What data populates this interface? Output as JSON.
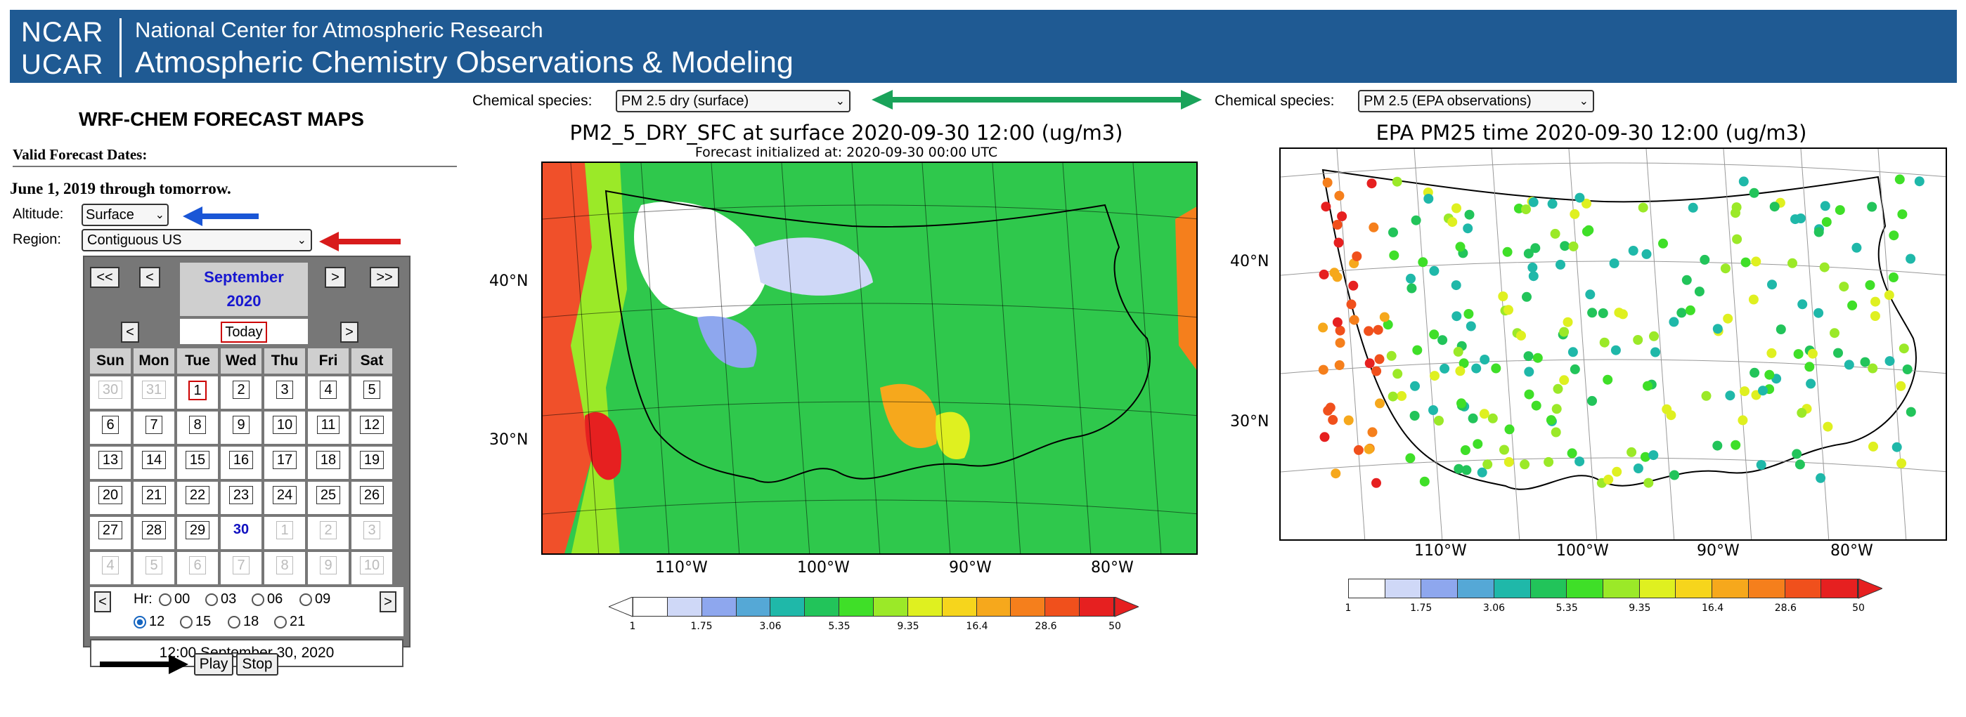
{
  "header": {
    "logo_top": "NCAR",
    "logo_bottom": "UCAR",
    "org": "National Center for Atmospheric Research",
    "title": "Atmospheric Chemistry Observations & Modeling",
    "bg_color": "#1f5a93"
  },
  "left": {
    "title": "WRF-CHEM FORECAST MAPS",
    "valid_label": "Valid Forecast Dates:",
    "valid_range": "June 1, 2019 through tomorrow.",
    "altitude_label": "Altitude:",
    "altitude_value": "Surface",
    "region_label": "Region:",
    "region_value": "Contiguous US"
  },
  "calendar": {
    "nav": [
      "<<",
      "<",
      ">",
      ">>"
    ],
    "month": "September",
    "year": "2020",
    "sub_prev": "<",
    "sub_next": ">",
    "today": "Today",
    "weekdays": [
      "Sun",
      "Mon",
      "Tue",
      "Wed",
      "Thu",
      "Fri",
      "Sat"
    ],
    "weeks": [
      [
        "30",
        "31",
        "1",
        "2",
        "3",
        "4",
        "5"
      ],
      [
        "6",
        "7",
        "8",
        "9",
        "10",
        "11",
        "12"
      ],
      [
        "13",
        "14",
        "15",
        "16",
        "17",
        "18",
        "19"
      ],
      [
        "20",
        "21",
        "22",
        "23",
        "24",
        "25",
        "26"
      ],
      [
        "27",
        "28",
        "29",
        "30",
        "1",
        "2",
        "3"
      ],
      [
        "4",
        "5",
        "6",
        "7",
        "8",
        "9",
        "10"
      ]
    ],
    "hr_prev": "<",
    "hr_next": ">",
    "hr_label": "Hr:",
    "hours": [
      "00",
      "03",
      "06",
      "09",
      "12",
      "15",
      "18",
      "21"
    ],
    "selected_hour": "12",
    "status": "12:00 September 30, 2020"
  },
  "controls": {
    "play": "Play",
    "stop": "Stop"
  },
  "species": {
    "label": "Chemical species:",
    "left_value": "PM 2.5 dry (surface)",
    "right_value": "PM 2.5 (EPA observations)"
  },
  "map_left": {
    "title": "PM2_5_DRY_SFC at surface 2020-09-30 12:00 (ug/m3)",
    "subtitle": "Forecast initialized at: 2020-09-30 00:00 UTC",
    "lat_labels": [
      "40°N",
      "30°N"
    ],
    "lon_labels": [
      "110°W",
      "100°W",
      "90°W",
      "80°W"
    ]
  },
  "map_right": {
    "title": "EPA PM25 time 2020-09-30 12:00 (ug/m3)",
    "lat_labels": [
      "40°N",
      "30°N"
    ],
    "lon_labels": [
      "110°W",
      "100°W",
      "90°W",
      "80°W"
    ]
  },
  "colorbar": {
    "ticks": [
      "1",
      "1.75",
      "3.06",
      "5.35",
      "9.35",
      "16.4",
      "28.6",
      "50"
    ],
    "colors": [
      "#ffffff",
      "#cfd8f7",
      "#8ea7ee",
      "#55a8d6",
      "#1fb8a9",
      "#22c45a",
      "#3fdf28",
      "#9be928",
      "#dff020",
      "#f6d51c",
      "#f6a81c",
      "#f57f1c",
      "#f0501c",
      "#e62020"
    ]
  },
  "arrows": {
    "blue": "#1a56d6",
    "red": "#d81b1b",
    "green": "#1aa35a",
    "black": "#000000"
  }
}
